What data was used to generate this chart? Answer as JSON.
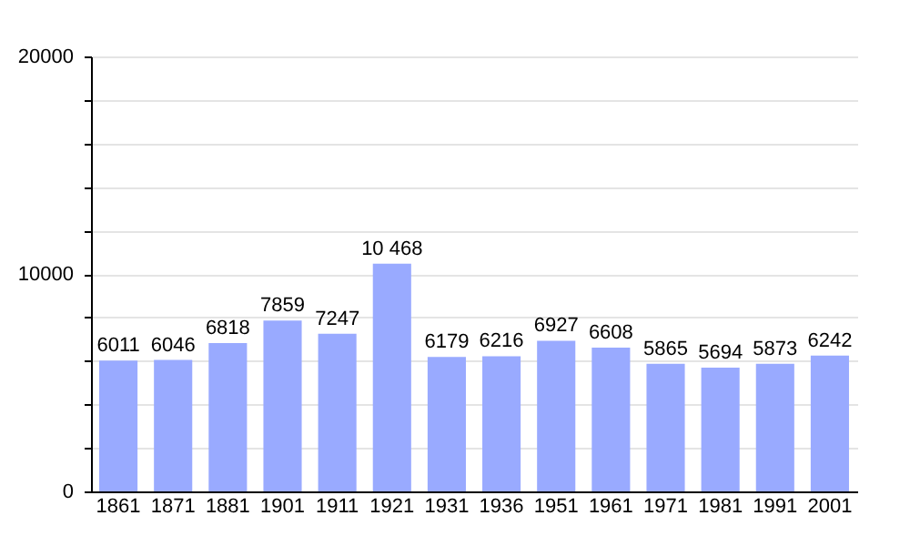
{
  "chart_data": {
    "type": "bar",
    "categories": [
      "1861",
      "1871",
      "1881",
      "1901",
      "1911",
      "1921",
      "1931",
      "1936",
      "1951",
      "1961",
      "1971",
      "1981",
      "1991",
      "2001"
    ],
    "values": [
      6011,
      6046,
      6818,
      7859,
      7247,
      10468,
      6179,
      6216,
      6927,
      6608,
      5865,
      5694,
      5873,
      6242
    ],
    "value_labels": [
      "6011",
      "6046",
      "6818",
      "7859",
      "7247",
      "10 468",
      "6179",
      "6216",
      "6927",
      "6608",
      "5865",
      "5694",
      "5873",
      "6242"
    ],
    "color": "#99aaff",
    "ylim": [
      0,
      20000
    ],
    "yticks": [
      0,
      {
        "value": 2000,
        "label": null
      },
      {
        "value": 4000,
        "label": null
      },
      {
        "value": 6000,
        "label": null
      },
      {
        "value": 8000,
        "label": null
      },
      10000,
      {
        "value": 12000,
        "label": null
      },
      {
        "value": 14000,
        "label": null
      },
      {
        "value": 16000,
        "label": null
      },
      {
        "value": 18000,
        "label": null
      },
      20000
    ],
    "grid": "y"
  }
}
